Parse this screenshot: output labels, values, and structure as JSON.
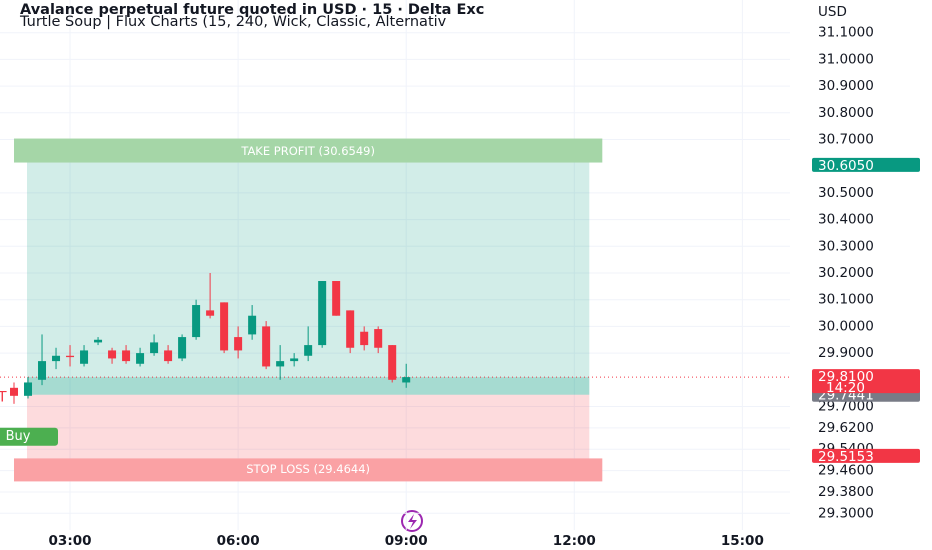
{
  "chart_data": {
    "type": "candlestick",
    "title": "Avalance perpetual future quoted in USD · 15 · Delta Exc",
    "subtitle": "Turtle Soup | Flux Charts (15, 240, Wick, Classic, Alternativ",
    "axis_label": "USD",
    "x": [
      2,
      2.25,
      2.5,
      2.75,
      3,
      3.25,
      3.5,
      3.75,
      4,
      4.25,
      4.5,
      4.75,
      5,
      5.25,
      5.5,
      5.75,
      6,
      6.25,
      6.5,
      6.75,
      7,
      7.25,
      7.5,
      7.75,
      8,
      8.25,
      8.5,
      8.75,
      9
    ],
    "open": [
      29.77,
      29.74,
      29.8,
      29.87,
      29.89,
      29.86,
      29.94,
      29.91,
      29.91,
      29.86,
      29.9,
      29.91,
      29.88,
      29.96,
      30.06,
      30.09,
      29.96,
      29.97,
      30.0,
      29.85,
      29.87,
      29.89,
      29.93,
      30.17,
      30.06,
      29.98,
      29.99,
      29.93,
      29.79
    ],
    "high": [
      29.79,
      29.81,
      29.97,
      29.92,
      29.93,
      29.93,
      29.96,
      29.92,
      29.93,
      29.92,
      29.97,
      29.93,
      29.97,
      30.1,
      30.2,
      30.09,
      30.0,
      30.08,
      30.02,
      29.93,
      29.9,
      30.0,
      30.17,
      30.17,
      30.06,
      30.0,
      30.0,
      29.93,
      29.86
    ],
    "low": [
      29.71,
      29.73,
      29.78,
      29.84,
      29.85,
      29.85,
      29.93,
      29.86,
      29.86,
      29.85,
      29.89,
      29.86,
      29.87,
      29.95,
      30.03,
      29.9,
      29.88,
      29.95,
      29.84,
      29.8,
      29.85,
      29.87,
      29.92,
      30.04,
      29.9,
      29.91,
      29.9,
      29.79,
      29.77
    ],
    "close": [
      29.74,
      29.79,
      29.87,
      29.89,
      29.885,
      29.91,
      29.95,
      29.88,
      29.87,
      29.9,
      29.94,
      29.87,
      29.96,
      30.08,
      30.04,
      29.91,
      29.91,
      30.04,
      29.85,
      29.87,
      29.88,
      29.93,
      30.17,
      30.04,
      29.92,
      29.93,
      29.92,
      29.8,
      29.81
    ],
    "up_color": "#089981",
    "down_color": "#f23645",
    "xlim": [
      1.75,
      15.85
    ],
    "xticks": [
      {
        "value": 3,
        "label": "03:00"
      },
      {
        "value": 6,
        "label": "06:00"
      },
      {
        "value": 9,
        "label": "09:00"
      },
      {
        "value": 12,
        "label": "12:00"
      },
      {
        "value": 15,
        "label": "15:00"
      }
    ],
    "ylim": [
      29.2,
      31.2
    ],
    "yticks": [
      {
        "value": 31.1,
        "label": "31.1000"
      },
      {
        "value": 31.0,
        "label": "31.0000"
      },
      {
        "value": 30.9,
        "label": "30.9000"
      },
      {
        "value": 30.8,
        "label": "30.8000"
      },
      {
        "value": 30.7,
        "label": "30.7000"
      },
      {
        "value": 30.5,
        "label": "30.5000"
      },
      {
        "value": 30.4,
        "label": "30.4000"
      },
      {
        "value": 30.3,
        "label": "30.3000"
      },
      {
        "value": 30.2,
        "label": "30.2000"
      },
      {
        "value": 30.1,
        "label": "30.1000"
      },
      {
        "value": 30.0,
        "label": "30.0000"
      },
      {
        "value": 29.9,
        "label": "29.9000"
      },
      {
        "value": 29.7,
        "label": "29.7000"
      },
      {
        "value": 29.62,
        "label": "29.6200"
      },
      {
        "value": 29.54,
        "label": "29.5400"
      },
      {
        "value": 29.46,
        "label": "29.4600"
      },
      {
        "value": 29.38,
        "label": "29.3800"
      },
      {
        "value": 29.3,
        "label": "29.3000"
      }
    ],
    "grid": true,
    "position": {
      "x": [
        2,
        12.5
      ],
      "entry": 29.7441,
      "take_profit": 30.6549,
      "take_profit_label": "TAKE PROFIT (30.6549)",
      "stop_loss": 29.4644,
      "stop_loss_label": "STOP LOSS (29.4644)",
      "profit_color": "#089981",
      "loss_color": "#f23645"
    },
    "current_price": {
      "value": 29.81,
      "label": "29.8100",
      "countdown": "14:20",
      "color": "#f23645"
    },
    "price_tags": [
      {
        "value": 30.605,
        "label": "30.6050",
        "color": "#089981"
      },
      {
        "value": 29.7441,
        "label": "29.7441",
        "color": "#787b86"
      },
      {
        "value": 29.5153,
        "label": "29.5153",
        "color": "#f23645"
      }
    ],
    "signal_label": "T",
    "buy_label": "Buy"
  }
}
